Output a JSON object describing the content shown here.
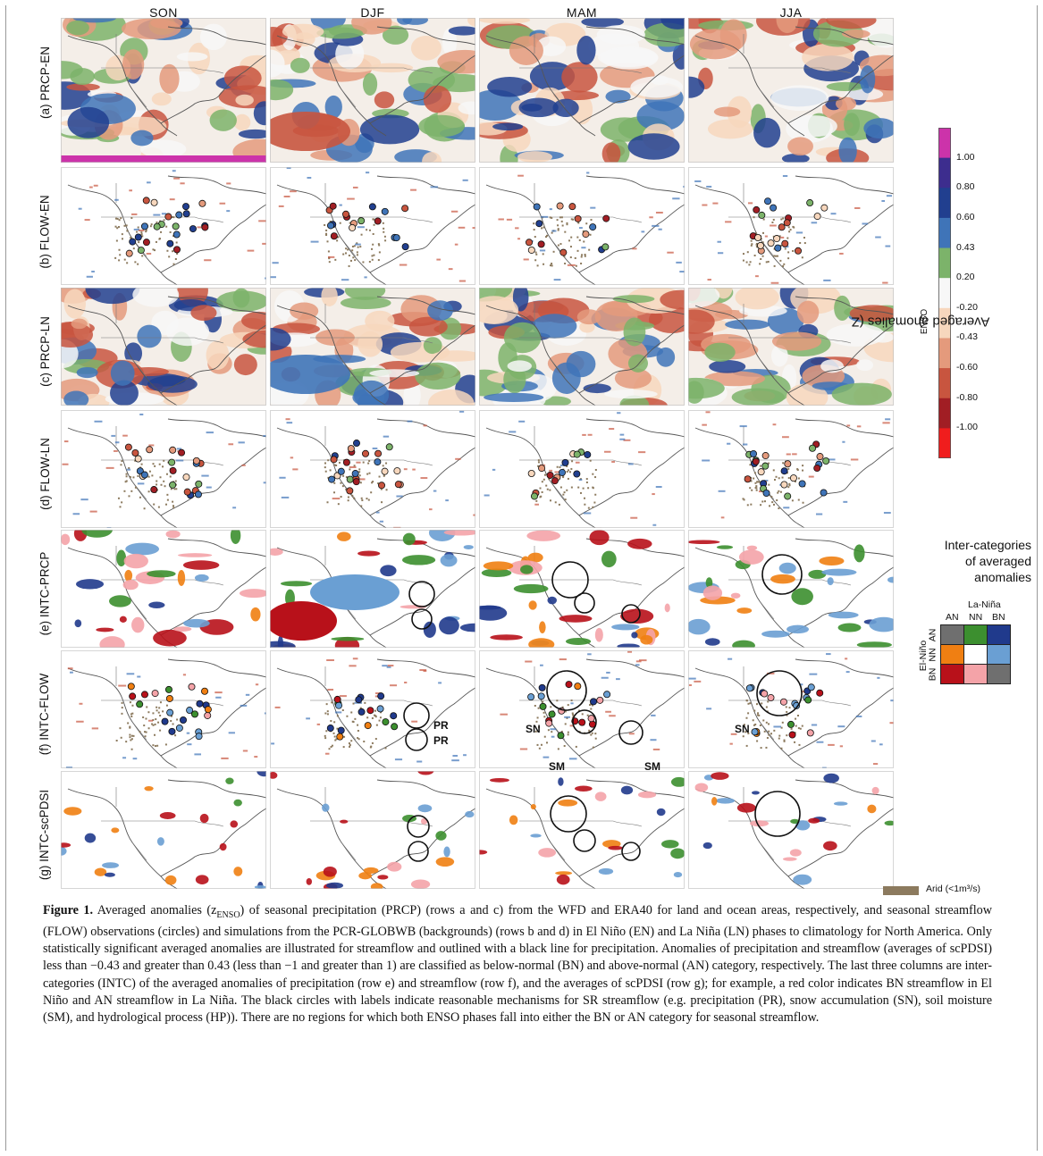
{
  "columns": [
    "SON",
    "DJF",
    "MAM",
    "JJA"
  ],
  "rows": [
    {
      "label": "(a) PRCP-EN",
      "kind": "prcp"
    },
    {
      "label": "(b) FLOW-EN",
      "kind": "flow"
    },
    {
      "label": "(c) PRCP-LN",
      "kind": "prcp"
    },
    {
      "label": "(d) FLOW-LN",
      "kind": "flow"
    },
    {
      "label": "(e) INTC-PRCP",
      "kind": "intc"
    },
    {
      "label": "(f) INTC-FLOW",
      "kind": "intcflow"
    },
    {
      "label": "(g) INTC-scPDSI",
      "kind": "intcpdsi"
    }
  ],
  "colorbar": {
    "title": "Averaged anomalies (Z",
    "title_sub": "ENSO",
    "title_end": ")",
    "ticks": [
      "1.00",
      "0.80",
      "0.60",
      "0.43",
      "0.20",
      "-0.20",
      "-0.43",
      "-0.60",
      "-0.80",
      "-1.00"
    ],
    "colors": [
      "#cc33aa",
      "#3d2d8e",
      "#213f8f",
      "#3f74b8",
      "#7cb36a",
      "#f7f7f7",
      "#f7d7bd",
      "#e49a7c",
      "#c8553f",
      "#a11e24",
      "#f01d1d"
    ]
  },
  "inter_legend": {
    "title_line1": "Inter-categories",
    "title_line2": "of averaged",
    "title_line3": "anomalies",
    "la_nina": "La-Niña",
    "el_nino": "El-Niño",
    "col_heads": [
      "AN",
      "NN",
      "BN"
    ],
    "row_heads": [
      "AN",
      "NN",
      "BN"
    ],
    "cells": [
      [
        "#6f6f6f",
        "#3c8f2f",
        "#203a8c"
      ],
      [
        "#f07f12",
        "#ffffff",
        "#6a9fd3"
      ],
      [
        "#b8111a",
        "#f4a3a8",
        "#6f6f6f"
      ]
    ]
  },
  "arid_legend": {
    "label": "Arid (<1m³/s)",
    "color": "#8c7a5e"
  },
  "mechanisms": [
    "PR",
    "PR",
    "SN",
    "SM",
    "SM",
    "SN"
  ],
  "caption": {
    "label": "Figure 1.",
    "text_1": " Averaged anomalies (z",
    "sub": "ENSO",
    "text_2": ") of seasonal precipitation (PRCP) (rows a and c) from the WFD and ERA40 for land and ocean areas, respectively, and seasonal streamflow (FLOW) observations (circles) and simulations from the PCR-GLOBWB (backgrounds) (rows b and d) in El Niño (EN) and La Niña (LN) phases to climatology for North America. Only statistically significant averaged anomalies are illustrated for streamflow and outlined with a black line for precipitation. Anomalies of precipitation and streamflow (averages of scPDSI) less than −0.43 and greater than 0.43 (less than −1 and greater than 1) are classified as below-normal (BN) and above-normal (AN) category, respectively. The last three columns are inter-categories (INTC) of the averaged anomalies of precipitation (row e) and streamflow (row f), and the averages of scPDSI (row g); for example, a red color indicates BN streamflow in El Niño and AN streamflow in La Niña. The black circles with labels indicate reasonable mechanisms for SR streamflow (e.g. precipitation (PR), snow accumulation (SN), soil moisture (SM), and hydrological process (HP)). There are no regions for which both ENSO phases fall into either the BN or AN category for seasonal streamflow."
  }
}
